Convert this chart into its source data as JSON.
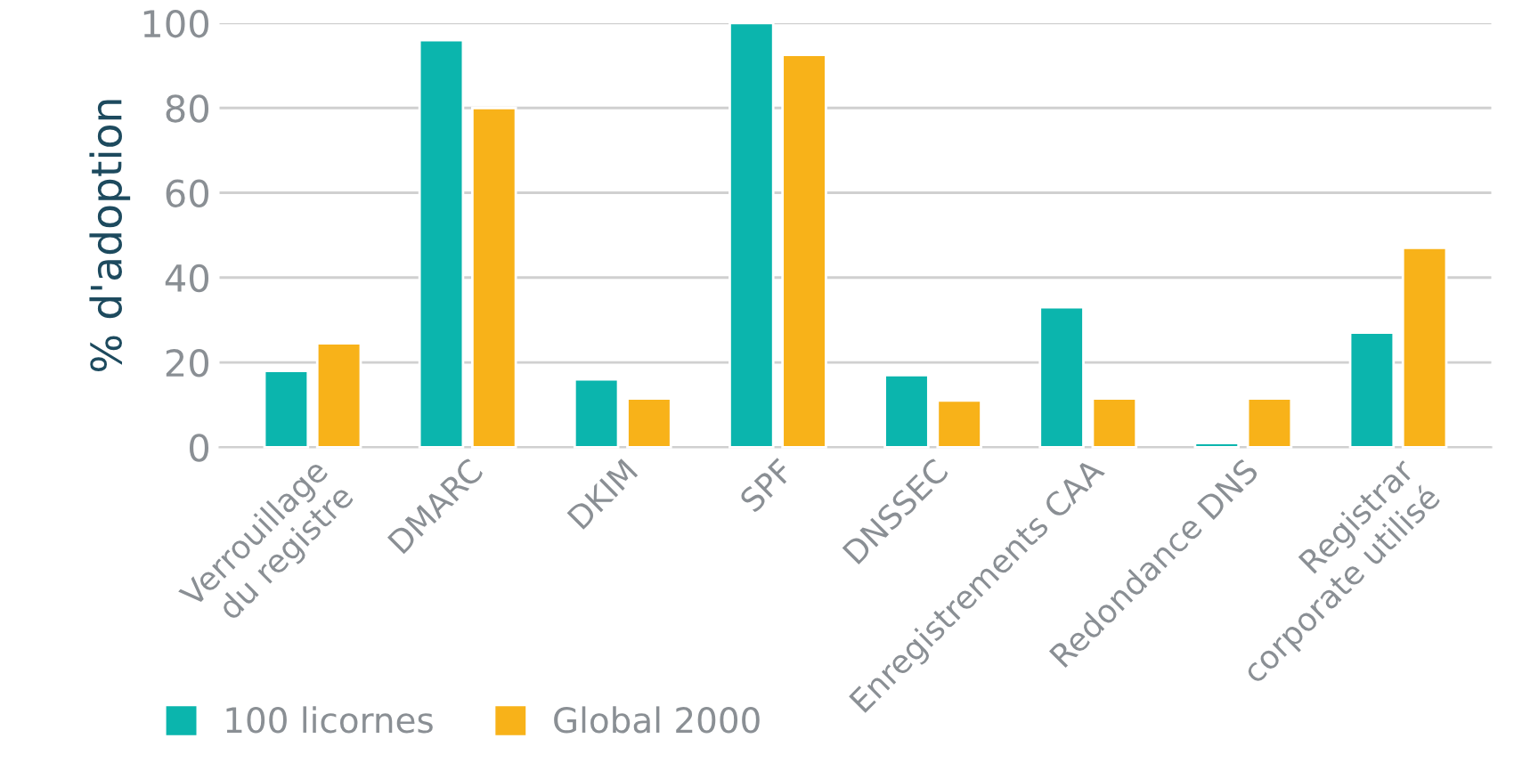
{
  "chart_data": {
    "type": "bar",
    "ylabel": "% d'adoption",
    "categories": [
      "Verrouillage\ndu registre",
      "DMARC",
      "DKIM",
      "SPF",
      "DNSSEC",
      "Enregistrements CAA",
      "Redondance DNS",
      "Registrar\ncorporate utilisé"
    ],
    "series": [
      {
        "name": "100 licornes",
        "color": "#0bb5ad",
        "values": [
          18,
          96,
          16,
          100,
          17,
          33,
          1,
          27
        ]
      },
      {
        "name": "Global 2000",
        "color": "#f8b219",
        "values": [
          24.5,
          80,
          11.5,
          92.5,
          11,
          11.5,
          11.5,
          47
        ]
      }
    ],
    "ylim": [
      0,
      100
    ],
    "yticks": [
      0,
      20,
      40,
      60,
      80,
      100
    ],
    "grid": "y",
    "legend": "bottom left"
  }
}
